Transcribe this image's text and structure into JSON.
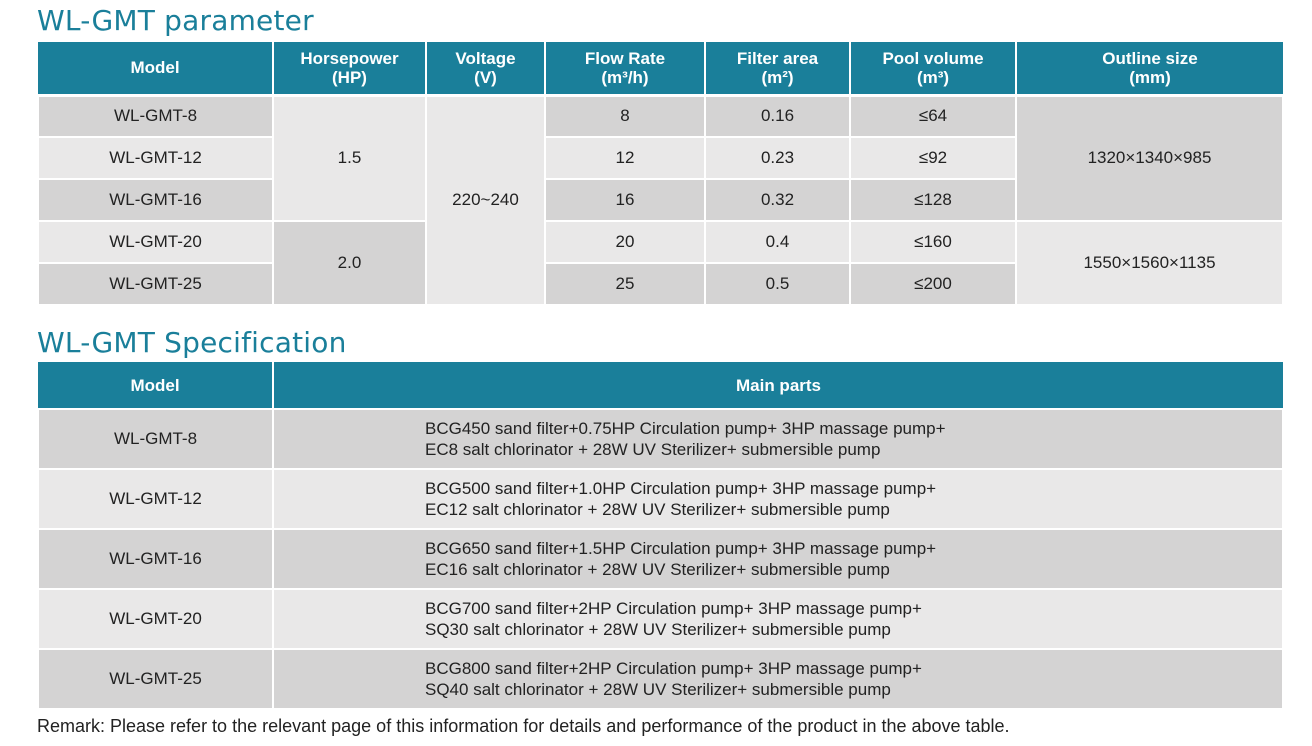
{
  "title_parameter": "WL-GMT parameter",
  "title_specification": "WL-GMT Specification",
  "param_headers": [
    {
      "line1": "Model",
      "line2": ""
    },
    {
      "line1": "Horsepower",
      "line2": "(HP)"
    },
    {
      "line1": "Voltage",
      "line2": "(V)"
    },
    {
      "line1": "Flow Rate",
      "line2": "(m³/h)"
    },
    {
      "line1": "Filter area",
      "line2": "(m²)"
    },
    {
      "line1": "Pool volume",
      "line2": "(m³)"
    },
    {
      "line1": "Outline size",
      "line2": "(mm)"
    }
  ],
  "param_rows": [
    {
      "model": "WL-GMT-8",
      "flow": "8",
      "filter": "0.16",
      "pool": "≤64"
    },
    {
      "model": "WL-GMT-12",
      "flow": "12",
      "filter": "0.23",
      "pool": "≤92"
    },
    {
      "model": "WL-GMT-16",
      "flow": "16",
      "filter": "0.32",
      "pool": "≤128"
    },
    {
      "model": "WL-GMT-20",
      "flow": "20",
      "filter": "0.4",
      "pool": "≤160"
    },
    {
      "model": "WL-GMT-25",
      "flow": "25",
      "filter": "0.5",
      "pool": "≤200"
    }
  ],
  "horsepower_groups": [
    "1.5",
    "2.0"
  ],
  "voltage": "220~240",
  "outline_groups": [
    "1320×1340×985",
    "1550×1560×1135"
  ],
  "spec_headers": {
    "model": "Model",
    "parts": "Main parts"
  },
  "spec_rows": [
    {
      "model": "WL-GMT-8",
      "line1": "BCG450 sand filter+0.75HP Circulation pump+ 3HP massage pump+",
      "line2": "EC8 salt chlorinator + 28W UV Sterilizer+ submersible pump"
    },
    {
      "model": "WL-GMT-12",
      "line1": "BCG500 sand filter+1.0HP Circulation pump+ 3HP massage pump+",
      "line2": "EC12  salt chlorinator + 28W UV Sterilizer+ submersible pump"
    },
    {
      "model": "WL-GMT-16",
      "line1": "BCG650 sand filter+1.5HP Circulation pump+ 3HP massage pump+",
      "line2": "EC16 salt chlorinator + 28W UV Sterilizer+ submersible pump"
    },
    {
      "model": "WL-GMT-20",
      "line1": "BCG700 sand filter+2HP Circulation pump+ 3HP massage pump+",
      "line2": "SQ30 salt chlorinator + 28W UV Sterilizer+ submersible pump"
    },
    {
      "model": "WL-GMT-25",
      "line1": "BCG800 sand filter+2HP Circulation pump+ 3HP massage pump+",
      "line2": "SQ40 salt chlorinator + 28W UV Sterilizer+ submersible pump"
    }
  ],
  "remark": "Remark: Please refer to the relevant page of this information for details and performance of the product in the above table.",
  "colors": {
    "header_bg": "#1a7f9a",
    "row_dark": "#d4d3d3",
    "row_light": "#e9e8e8",
    "title": "#1a7f9a"
  }
}
